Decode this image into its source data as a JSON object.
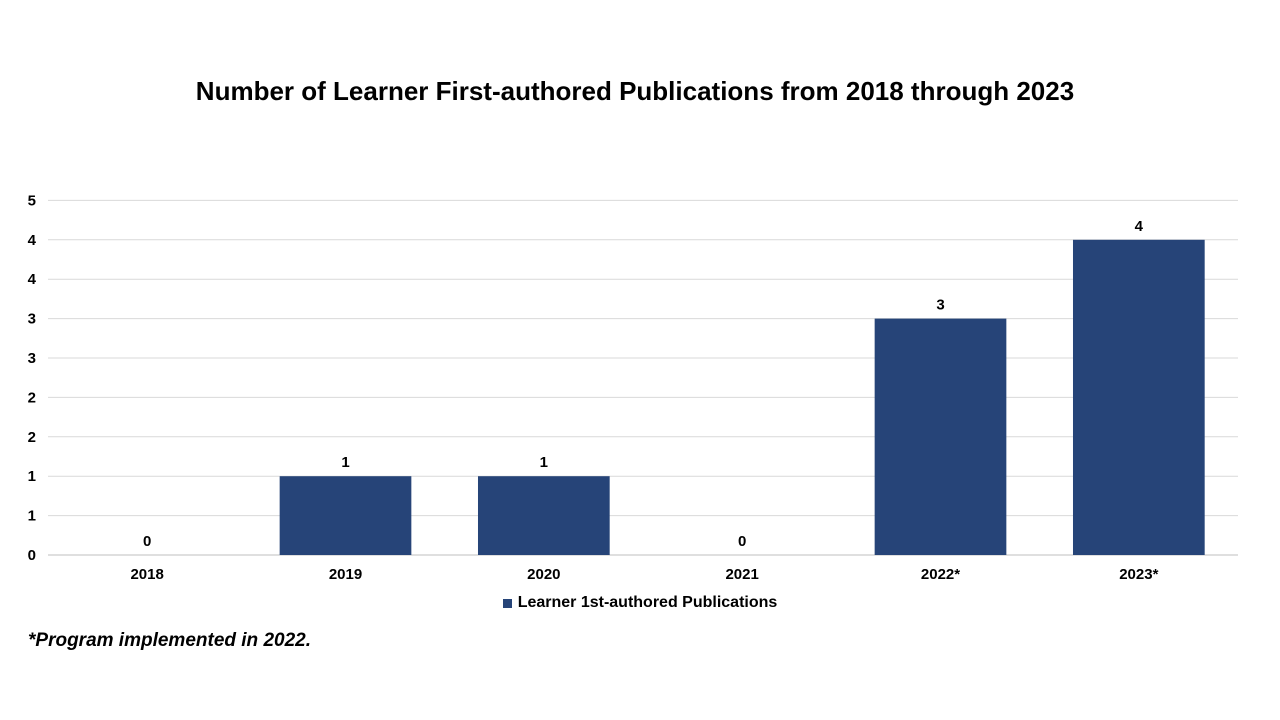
{
  "footnote": "*Program implemented in 2022.",
  "colors": {
    "bar": "#264478",
    "grid": "#d9d9d9",
    "axis": "#bfbfbf"
  },
  "chart_data": {
    "type": "bar",
    "title": "Number of Learner First-authored Publications from 2018 through 2023",
    "categories": [
      "2018",
      "2019",
      "2020",
      "2021",
      "2022*",
      "2023*"
    ],
    "series": [
      {
        "name": "Learner 1st-authored Publications",
        "values": [
          0,
          1,
          1,
          0,
          3,
          4
        ]
      }
    ],
    "data_labels": [
      "0",
      "1",
      "1",
      "0",
      "3",
      "4"
    ],
    "y_axis_min": 0,
    "y_axis_max": 4.5,
    "y_axis_step": 0.5,
    "y_tick_labels": [
      "0",
      "1",
      "1",
      "2",
      "2",
      "3",
      "3",
      "4",
      "4",
      "5"
    ],
    "grid": true,
    "legend_position": "bottom"
  }
}
